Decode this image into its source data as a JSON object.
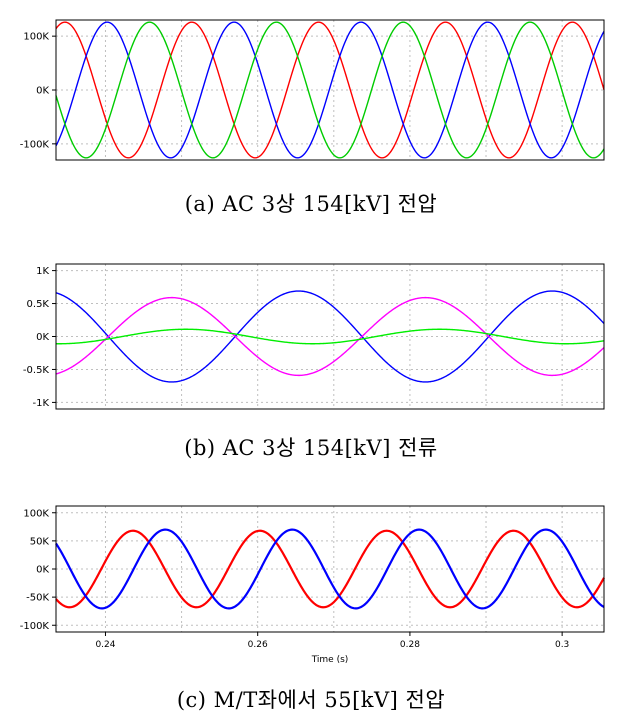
{
  "chart_data": [
    {
      "type": "line",
      "caption": "(a) AC 3상 154[kV] 전압",
      "yticks": [
        "100K",
        "0K",
        "-100K"
      ],
      "ytick_values": [
        100000,
        0,
        -100000
      ],
      "ylim": [
        -130000,
        130000
      ],
      "xlim": [
        0.2335,
        0.3055
      ],
      "grid": true,
      "series": [
        {
          "color": "#ff0000",
          "amplitude": 126000,
          "frequency": 60,
          "phase_deg": 61
        },
        {
          "color": "#0000ff",
          "amplitude": 126000,
          "frequency": 60,
          "phase_deg": -59
        },
        {
          "color": "#00cc00",
          "amplitude": 126000,
          "frequency": 60,
          "phase_deg": 181
        }
      ]
    },
    {
      "type": "line",
      "caption": "(b) AC 3상 154[kV] 전류",
      "yticks": [
        "1K",
        "0.5K",
        "0K",
        "-0.5K",
        "-1K"
      ],
      "ytick_values": [
        1000,
        500,
        0,
        -500,
        -1000
      ],
      "ylim": [
        -1100,
        1100
      ],
      "xlim": [
        0.2335,
        0.3055
      ],
      "grid": true,
      "series": [
        {
          "color": "#0000ff",
          "amplitude": 690,
          "frequency": 30,
          "phase_deg": 104
        },
        {
          "color": "#ff00ff",
          "amplitude": 590,
          "frequency": 30,
          "phase_deg": -76
        },
        {
          "color": "#00ee00",
          "amplitude": 110,
          "frequency": 30,
          "phase_deg": -96
        }
      ]
    },
    {
      "type": "line",
      "caption": "(c) M/T좌에서 55[kV] 전압",
      "yticks": [
        "100K",
        "50K",
        "0K",
        "-50K",
        "-100K"
      ],
      "ytick_values": [
        100000,
        50000,
        0,
        -50000,
        -100000
      ],
      "ylim": [
        -112000,
        112000
      ],
      "xlim": [
        0.2335,
        0.3055
      ],
      "xticks": [
        "0.24",
        "0.26",
        "0.28",
        "0.3"
      ],
      "xtick_values": [
        0.24,
        0.26,
        0.28,
        0.3
      ],
      "xlabel": "Time (s)",
      "grid": true,
      "series": [
        {
          "color": "#ff0000",
          "amplitude": 68000,
          "frequency": 60,
          "phase_deg": -132
        },
        {
          "color": "#0000ff",
          "amplitude": 70000,
          "frequency": 60,
          "phase_deg": 136
        }
      ]
    }
  ]
}
